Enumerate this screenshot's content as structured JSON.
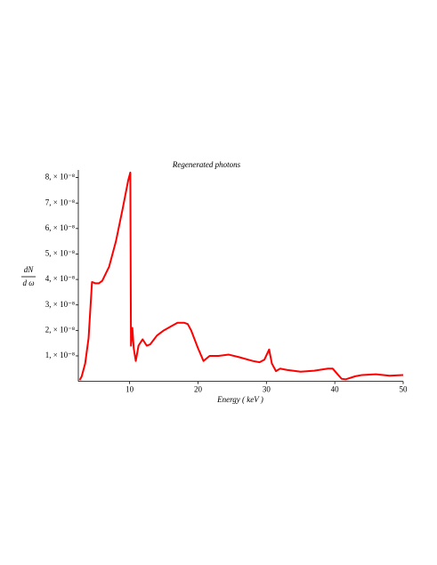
{
  "chart_data": {
    "type": "line",
    "title": "Regenerated photons",
    "xlabel": "Energy ( keV )",
    "ylabel_numerator": "dN",
    "ylabel_denominator": "d ω",
    "xlim": [
      2.5,
      50
    ],
    "ylim": [
      0,
      8.3e-08
    ],
    "xticks": [
      10,
      20,
      30,
      40,
      50
    ],
    "yticks": [
      {
        "value": 1e-08,
        "label": "1, × 10⁻⁸"
      },
      {
        "value": 2e-08,
        "label": "2, × 10⁻⁸"
      },
      {
        "value": 3e-08,
        "label": "3, × 10⁻⁸"
      },
      {
        "value": 4e-08,
        "label": "4, × 10⁻⁸"
      },
      {
        "value": 5e-08,
        "label": "5, × 10⁻⁸"
      },
      {
        "value": 6e-08,
        "label": "6, × 10⁻⁸"
      },
      {
        "value": 7e-08,
        "label": "7, × 10⁻⁸"
      },
      {
        "value": 8e-08,
        "label": "8, × 10⁻⁸"
      }
    ],
    "color": "#ff0000",
    "x": [
      2.7,
      3.0,
      3.5,
      4.0,
      4.5,
      5.0,
      5.5,
      6,
      7,
      8,
      9,
      9.8,
      10.1,
      10.2,
      10.4,
      10.6,
      10.9,
      11.3,
      11.9,
      12.5,
      13,
      14,
      15,
      16,
      17,
      18,
      18.5,
      19,
      20,
      20.8,
      21.7,
      23,
      24.5,
      26,
      28,
      29,
      29.7,
      30.4,
      30.8,
      31.4,
      32,
      33,
      35,
      37,
      39,
      39.7,
      40.5,
      41,
      41.6,
      43,
      44,
      46,
      48,
      50
    ],
    "values": [
      5e-10,
      2e-09,
      7e-09,
      1.7e-08,
      3.9e-08,
      3.85e-08,
      3.85e-08,
      3.95e-08,
      4.5e-08,
      5.5e-08,
      6.8e-08,
      7.9e-08,
      8.2e-08,
      1.4e-08,
      2.1e-08,
      1.3e-08,
      8e-09,
      1.4e-08,
      1.65e-08,
      1.4e-08,
      1.45e-08,
      1.8e-08,
      2e-08,
      2.15e-08,
      2.3e-08,
      2.3e-08,
      2.25e-08,
      2e-08,
      1.3e-08,
      8e-09,
      1e-08,
      1e-08,
      1.05e-08,
      9.5e-09,
      8e-09,
      7.5e-09,
      8.5e-09,
      1.25e-08,
      7e-09,
      4e-09,
      5e-09,
      4.5e-09,
      3.8e-09,
      4.2e-09,
      5e-09,
      5e-09,
      2.5e-09,
      1e-09,
      8e-10,
      2e-09,
      2.5e-09,
      2.8e-09,
      2.2e-09,
      2.5e-09
    ]
  }
}
